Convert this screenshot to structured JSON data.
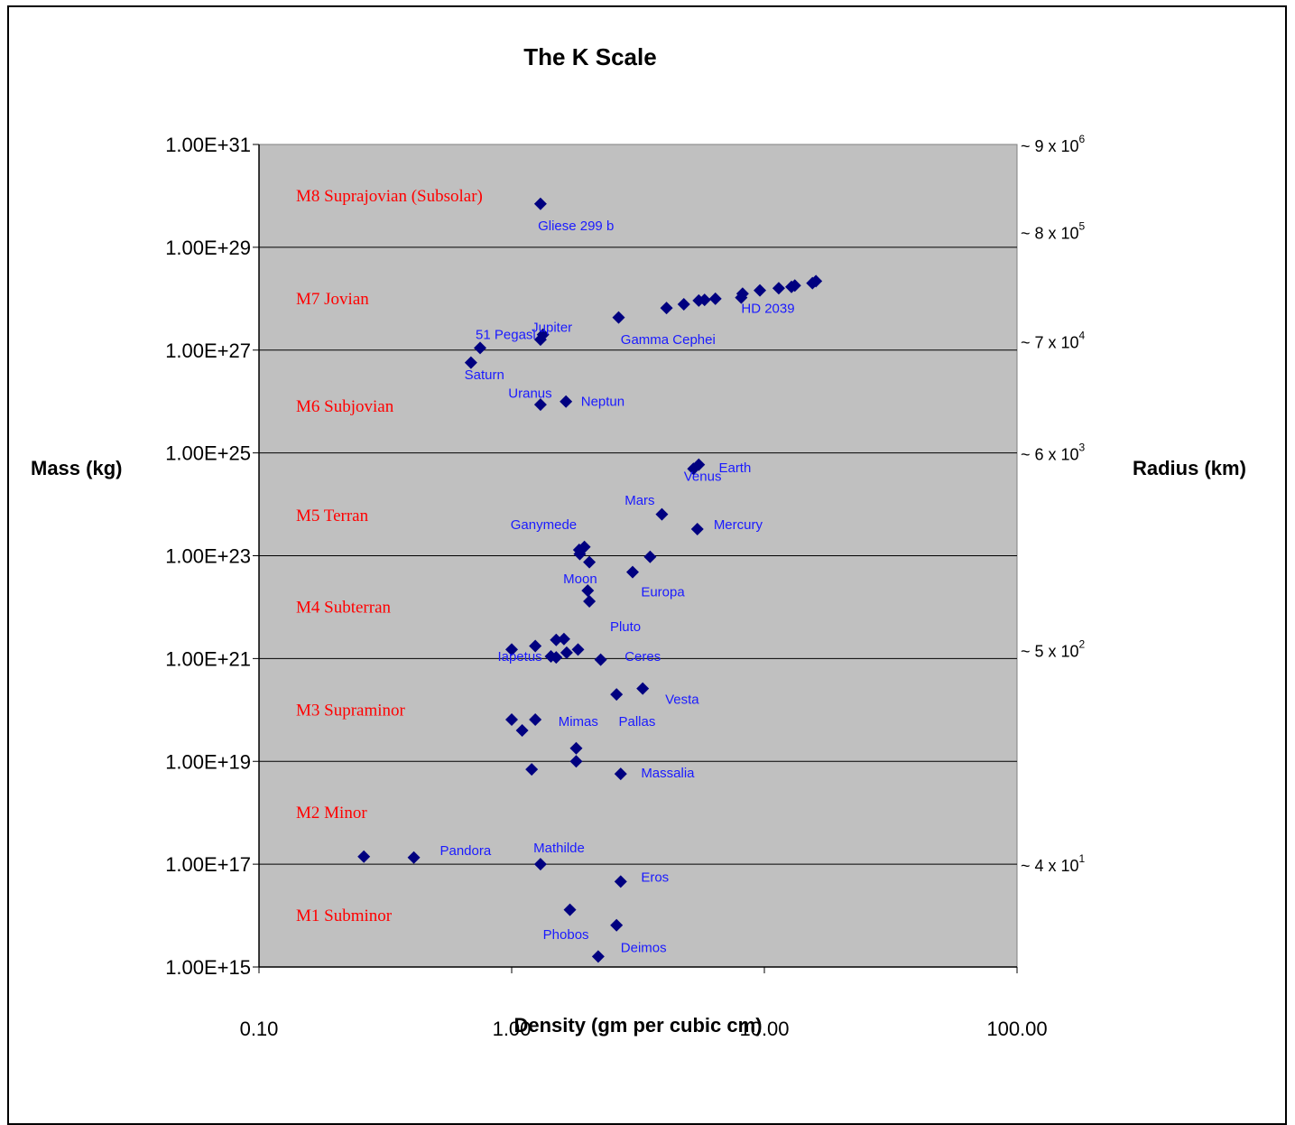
{
  "chart_data": {
    "type": "scatter",
    "title": "The K Scale",
    "xlabel": "Density (gm per cubic cm)",
    "ylabel": "Mass (kg)",
    "y2label": "Radius (km)",
    "x_scale": "log",
    "y_scale": "log",
    "xlim": [
      0.1,
      100
    ],
    "ylim": [
      1000000000000000.0,
      1e+31
    ],
    "x_ticks": [
      {
        "value": 0.1,
        "label": "0.10"
      },
      {
        "value": 1,
        "label": "1.00"
      },
      {
        "value": 10,
        "label": "10.00"
      },
      {
        "value": 100,
        "label": "100.00"
      }
    ],
    "y_ticks": [
      {
        "value": 1000000000000000.0,
        "label": "1.00E+15"
      },
      {
        "value": 1e+17,
        "label": "1.00E+17"
      },
      {
        "value": 1e+19,
        "label": "1.00E+19"
      },
      {
        "value": 1e+21,
        "label": "1.00E+21"
      },
      {
        "value": 1e+23,
        "label": "1.00E+23"
      },
      {
        "value": 1e+25,
        "label": "1.00E+25"
      },
      {
        "value": 1e+27,
        "label": "1.00E+27"
      },
      {
        "value": 1e+29,
        "label": "1.00E+29"
      },
      {
        "value": 1e+31,
        "label": "1.00E+31"
      }
    ],
    "radius_ticks": [
      {
        "mass": 1e+31,
        "base": "~ 9 x 10",
        "exp": "6"
      },
      {
        "mass": 2e+29,
        "base": "~ 8 x 10",
        "exp": "5"
      },
      {
        "mass": 1.5e+27,
        "base": "~ 7 x 10",
        "exp": "4"
      },
      {
        "mass": 1e+25,
        "base": "~ 6 x 10",
        "exp": "3"
      },
      {
        "mass": 1.5e+21,
        "base": "~ 5 x 10",
        "exp": "2"
      },
      {
        "mass": 1e+17,
        "base": "~ 4 x 10",
        "exp": "1"
      }
    ],
    "bands": [
      {
        "name": "M8 Suprajovian (Subsolar)",
        "mass": 1e+30
      },
      {
        "name": "M7 Jovian",
        "mass": 1e+28
      },
      {
        "name": "M6 Subjovian",
        "mass": 8e+25
      },
      {
        "name": "M5 Terran",
        "mass": 6e+23
      },
      {
        "name": "M4 Subterran",
        "mass": 1e+22
      },
      {
        "name": "M3 Supraminor",
        "mass": 1e+20
      },
      {
        "name": "M2 Minor",
        "mass": 1e+18
      },
      {
        "name": "M1 Subminor",
        "mass": 1e+16
      }
    ],
    "marker_color": "#000080",
    "band_label_color": "#ff0000",
    "point_label_color": "#1a1aff",
    "plot_background": "#c0c0c0",
    "grid": "horizontal",
    "points": [
      {
        "x": 1.3,
        "y": 7e+29
      },
      {
        "x": 16.0,
        "y": 2.2e+28
      },
      {
        "x": 15.5,
        "y": 2e+28
      },
      {
        "x": 13.2,
        "y": 1.8e+28
      },
      {
        "x": 12.8,
        "y": 1.7e+28
      },
      {
        "x": 11.4,
        "y": 1.6e+28
      },
      {
        "x": 9.6,
        "y": 1.45e+28
      },
      {
        "x": 8.2,
        "y": 1.25e+28
      },
      {
        "x": 8.1,
        "y": 1.05e+28
      },
      {
        "x": 6.4,
        "y": 1e+28
      },
      {
        "x": 5.8,
        "y": 9.5e+27
      },
      {
        "x": 5.5,
        "y": 9.2e+27
      },
      {
        "x": 4.8,
        "y": 7.8e+27
      },
      {
        "x": 4.1,
        "y": 6.6e+27
      },
      {
        "x": 2.65,
        "y": 4.3e+27
      },
      {
        "x": 1.33,
        "y": 2e+27
      },
      {
        "x": 1.3,
        "y": 1.6e+27
      },
      {
        "x": 0.75,
        "y": 1.1e+27
      },
      {
        "x": 0.69,
        "y": 5.7e+26
      },
      {
        "x": 1.64,
        "y": 1e+26
      },
      {
        "x": 1.3,
        "y": 8.7e+25
      },
      {
        "x": 5.5,
        "y": 5.9e+24
      },
      {
        "x": 5.24,
        "y": 4.9e+24
      },
      {
        "x": 3.93,
        "y": 6.4e+23
      },
      {
        "x": 5.43,
        "y": 3.3e+23
      },
      {
        "x": 1.94,
        "y": 1.48e+23
      },
      {
        "x": 1.85,
        "y": 1.3e+23
      },
      {
        "x": 1.86,
        "y": 1.08e+23
      },
      {
        "x": 3.53,
        "y": 9.5e+22
      },
      {
        "x": 2.03,
        "y": 7.5e+22
      },
      {
        "x": 3.01,
        "y": 4.8e+22
      },
      {
        "x": 2.0,
        "y": 2.1e+22
      },
      {
        "x": 2.03,
        "y": 1.3e+22
      },
      {
        "x": 1.5,
        "y": 2.3e+21
      },
      {
        "x": 1.61,
        "y": 2.4e+21
      },
      {
        "x": 1.24,
        "y": 1.75e+21
      },
      {
        "x": 1.0,
        "y": 1.5e+21
      },
      {
        "x": 1.83,
        "y": 1.5e+21
      },
      {
        "x": 1.65,
        "y": 1.3e+21
      },
      {
        "x": 1.43,
        "y": 1.1e+21
      },
      {
        "x": 1.5,
        "y": 1.05e+21
      },
      {
        "x": 2.25,
        "y": 9.5e+20
      },
      {
        "x": 3.3,
        "y": 2.6e+20
      },
      {
        "x": 2.6,
        "y": 2e+20
      },
      {
        "x": 1.0,
        "y": 6.5e+19
      },
      {
        "x": 1.24,
        "y": 6.5e+19
      },
      {
        "x": 1.1,
        "y": 4e+19
      },
      {
        "x": 1.8,
        "y": 1.8e+19
      },
      {
        "x": 1.8,
        "y": 1e+19
      },
      {
        "x": 1.2,
        "y": 7e+18
      },
      {
        "x": 2.7,
        "y": 5.7e+18
      },
      {
        "x": 0.26,
        "y": 1.4e+17
      },
      {
        "x": 0.41,
        "y": 1.35e+17
      },
      {
        "x": 1.3,
        "y": 1e+17
      },
      {
        "x": 2.7,
        "y": 4.6e+16
      },
      {
        "x": 1.7,
        "y": 1.3e+16
      },
      {
        "x": 2.6,
        "y": 6500000000000000.0
      },
      {
        "x": 2.2,
        "y": 1600000000000000.0
      }
    ],
    "annotations": [
      {
        "text": "Gliese 299 b",
        "x": 1.27,
        "y": 2.6e+29
      },
      {
        "text": "HD 2039",
        "x": 8.1,
        "y": 6.5e+27
      },
      {
        "text": "Gamma Cephei",
        "x": 2.7,
        "y": 1.6e+27
      },
      {
        "text": "Jupiter",
        "x": 1.2,
        "y": 2.8e+27
      },
      {
        "text": "51 Pegasi",
        "x": 0.72,
        "y": 2e+27
      },
      {
        "text": "Saturn",
        "x": 0.65,
        "y": 3.3e+26
      },
      {
        "text": "Uranus",
        "x": 0.97,
        "y": 1.45e+26
      },
      {
        "text": "Neptun",
        "x": 1.88,
        "y": 1e+26
      },
      {
        "text": "Earth",
        "x": 6.6,
        "y": 5.2e+24
      },
      {
        "text": "Venus",
        "x": 4.8,
        "y": 3.5e+24
      },
      {
        "text": "Mars",
        "x": 2.8,
        "y": 1.2e+24
      },
      {
        "text": "Mercury",
        "x": 6.3,
        "y": 4e+23
      },
      {
        "text": "Ganymede",
        "x": 0.99,
        "y": 4e+23
      },
      {
        "text": "Moon",
        "x": 1.6,
        "y": 3.6e+22
      },
      {
        "text": "Europa",
        "x": 3.25,
        "y": 2e+22
      },
      {
        "text": "Pluto",
        "x": 2.45,
        "y": 4.2e+21
      },
      {
        "text": "Iapetus",
        "x": 0.88,
        "y": 1.1e+21
      },
      {
        "text": "Ceres",
        "x": 2.8,
        "y": 1.1e+21
      },
      {
        "text": "Vesta",
        "x": 4.05,
        "y": 1.6e+20
      },
      {
        "text": "Mimas",
        "x": 1.53,
        "y": 6e+19
      },
      {
        "text": "Pallas",
        "x": 2.65,
        "y": 6e+19
      },
      {
        "text": "Massalia",
        "x": 3.25,
        "y": 6e+18
      },
      {
        "text": "Mathilde",
        "x": 1.22,
        "y": 2.1e+17
      },
      {
        "text": "Pandora",
        "x": 0.52,
        "y": 1.85e+17
      },
      {
        "text": "Eros",
        "x": 3.25,
        "y": 5.6e+16
      },
      {
        "text": "Phobos",
        "x": 1.33,
        "y": 4300000000000000.0
      },
      {
        "text": "Deimos",
        "x": 2.7,
        "y": 2400000000000000.0
      }
    ]
  }
}
